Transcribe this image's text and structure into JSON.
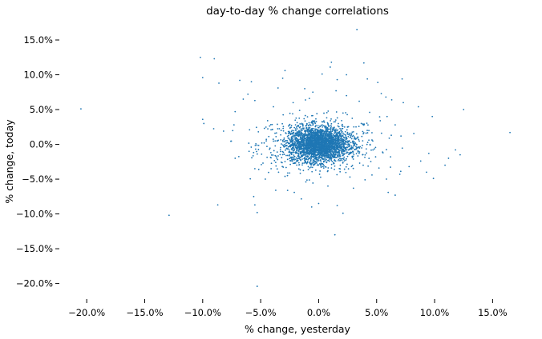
{
  "chart_data": {
    "type": "scatter",
    "title": "day-to-day % change correlations",
    "xlabel": "% change, yesterday",
    "ylabel": "% change, today",
    "xlim": [
      -22.5,
      18.5
    ],
    "ylim": [
      -22.0,
      17.3
    ],
    "x_ticks": [
      -20,
      -15,
      -10,
      -5,
      0,
      5,
      10,
      15
    ],
    "x_tick_labels": [
      "−20.0%",
      "−15.0%",
      "−10.0%",
      "−5.0%",
      "0.0%",
      "5.0%",
      "10.0%",
      "15.0%"
    ],
    "y_ticks": [
      15,
      10,
      5,
      0,
      -5,
      -10,
      -15,
      -20
    ],
    "y_tick_labels": [
      "15.0%",
      "10.0%",
      "5.0%",
      "0.0%",
      "−5.0%",
      "−10.0%",
      "−15.0%",
      "−20.0%"
    ],
    "grid": false,
    "series": [
      {
        "color": "#1f77b4",
        "points": [
          [
            -20.5,
            5.1
          ],
          [
            -12.9,
            -10.2
          ],
          [
            -10.2,
            12.5
          ],
          [
            -9.0,
            12.3
          ],
          [
            -10.0,
            9.6
          ],
          [
            -8.6,
            8.8
          ],
          [
            -8.7,
            -8.7
          ],
          [
            -10.0,
            3.6
          ],
          [
            -9.9,
            3.0
          ],
          [
            -7.2,
            4.7
          ],
          [
            -6.5,
            6.5
          ],
          [
            -6.1,
            7.2
          ],
          [
            -5.5,
            6.3
          ],
          [
            -5.8,
            9.0
          ],
          [
            -6.8,
            9.2
          ],
          [
            -5.5,
            -3.5
          ],
          [
            -5.6,
            -7.5
          ],
          [
            -5.5,
            -8.7
          ],
          [
            -5.3,
            -9.8
          ],
          [
            -5.3,
            -20.4
          ],
          [
            -4.4,
            3.4
          ],
          [
            -3.1,
            9.5
          ],
          [
            -3.5,
            8.1
          ],
          [
            -2.9,
            10.6
          ],
          [
            -1.2,
            8.0
          ],
          [
            -0.5,
            7.5
          ],
          [
            0.3,
            10.1
          ],
          [
            1.1,
            11.8
          ],
          [
            1.0,
            11.1
          ],
          [
            1.6,
            9.3
          ],
          [
            2.4,
            10.0
          ],
          [
            2.4,
            7.0
          ],
          [
            3.3,
            16.5
          ],
          [
            3.9,
            11.7
          ],
          [
            4.2,
            9.4
          ],
          [
            5.1,
            8.9
          ],
          [
            7.2,
            9.4
          ],
          [
            5.4,
            7.3
          ],
          [
            5.8,
            6.8
          ],
          [
            6.3,
            6.4
          ],
          [
            7.3,
            6.0
          ],
          [
            8.6,
            5.4
          ],
          [
            9.8,
            4.0
          ],
          [
            12.5,
            5.0
          ],
          [
            16.5,
            1.7
          ],
          [
            11.8,
            -0.8
          ],
          [
            12.2,
            -1.5
          ],
          [
            11.2,
            -2.0
          ],
          [
            10.9,
            -3.0
          ],
          [
            9.5,
            -1.3
          ],
          [
            8.8,
            -2.4
          ],
          [
            9.3,
            -4.0
          ],
          [
            9.9,
            -4.9
          ],
          [
            7.8,
            -3.2
          ],
          [
            7.0,
            -4.3
          ],
          [
            6.6,
            -7.3
          ],
          [
            6.0,
            -6.9
          ],
          [
            4.0,
            -5.1
          ],
          [
            3.0,
            -6.3
          ],
          [
            2.1,
            -9.9
          ],
          [
            1.6,
            -8.8
          ],
          [
            1.4,
            -13.0
          ],
          [
            0.0,
            -8.5
          ],
          [
            -0.6,
            -9.0
          ],
          [
            -2.1,
            -6.9
          ],
          [
            -3.7,
            -6.6
          ],
          [
            -4.6,
            -5.0
          ],
          [
            -7.2,
            -2.0
          ],
          [
            -8.2,
            1.9
          ],
          [
            -7.3,
            2.8
          ],
          [
            -6.0,
            -1.0
          ],
          [
            -5.2,
            1.8
          ],
          [
            -4.8,
            -2.7
          ],
          [
            -3.9,
            5.4
          ],
          [
            -2.2,
            6.0
          ],
          [
            -0.8,
            6.6
          ],
          [
            1.5,
            7.7
          ],
          [
            3.5,
            6.2
          ],
          [
            4.4,
            4.6
          ],
          [
            5.9,
            4.0
          ],
          [
            6.6,
            2.8
          ],
          [
            7.1,
            1.2
          ],
          [
            6.2,
            -1.8
          ],
          [
            5.2,
            -3.4
          ],
          [
            4.6,
            -4.4
          ],
          [
            2.7,
            -4.7
          ],
          [
            0.8,
            -6.0
          ],
          [
            -1.1,
            -5.4
          ],
          [
            -2.9,
            -4.6
          ],
          [
            -4.1,
            -3.5
          ]
        ],
        "cluster": {
          "n": 2200,
          "center": [
            0.0,
            0.0
          ],
          "sd": 1.25
        },
        "halo": {
          "n": 700,
          "center": [
            0.0,
            0.0
          ],
          "sd": 2.6
        }
      }
    ]
  }
}
